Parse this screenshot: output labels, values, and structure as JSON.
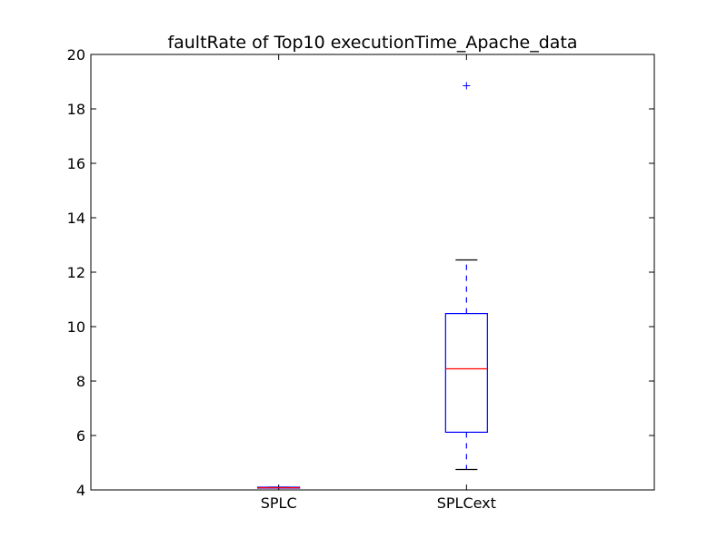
{
  "chart_data": {
    "type": "box",
    "title": "faultRate of Top10 executionTime_Apache_data",
    "xlabel": "",
    "ylabel": "",
    "ylim": [
      4,
      20
    ],
    "yticks": [
      4,
      6,
      8,
      10,
      12,
      14,
      16,
      18,
      20
    ],
    "categories": [
      "SPLC",
      "SPLCext"
    ],
    "boxes": [
      {
        "name": "SPLC",
        "whisker_low": 4.08,
        "q1": 4.08,
        "median": 4.08,
        "q3": 4.1,
        "whisker_high": 4.1,
        "outliers": []
      },
      {
        "name": "SPLCext",
        "whisker_low": 4.75,
        "q1": 6.12,
        "median": 8.45,
        "q3": 10.48,
        "whisker_high": 12.45,
        "outliers": [
          18.85
        ]
      }
    ],
    "grid": false,
    "colors": {
      "box": "#0000ff",
      "median": "#ff0000",
      "whisker": "#0000ff",
      "cap": "#000000",
      "outlier": "#0000ff",
      "axis": "#000000"
    }
  }
}
